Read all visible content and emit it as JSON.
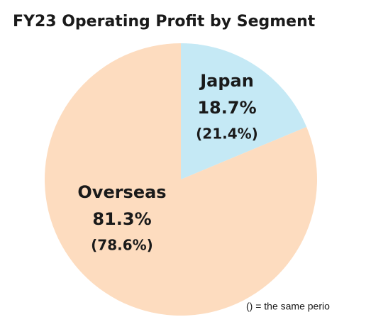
{
  "chart_data": {
    "type": "pie",
    "title": "FY23 Operating Profit by Segment",
    "categories": [
      "Japan",
      "Overseas"
    ],
    "values": [
      18.7,
      81.3
    ],
    "value_labels": [
      "18.7%",
      "81.3%"
    ],
    "prior_values": [
      21.4,
      78.6
    ],
    "prior_value_labels": [
      "(21.4%)",
      "(78.6%)"
    ],
    "colors": [
      "#c5e9f5",
      "#fddcbf"
    ],
    "note": "() = the same perio"
  }
}
